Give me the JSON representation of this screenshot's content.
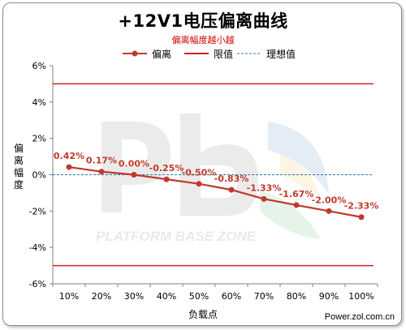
{
  "chart_data": {
    "type": "line",
    "title": "+12V1电压偏离曲线",
    "subtitle": "偏离幅度越小越",
    "xlabel": "负载点",
    "ylabel": "偏离幅度",
    "categories": [
      "10%",
      "20%",
      "30%",
      "40%",
      "50%",
      "60%",
      "70%",
      "80%",
      "90%",
      "100%"
    ],
    "series": [
      {
        "name": "偏离",
        "values": [
          0.42,
          0.17,
          0.0,
          -0.25,
          -0.5,
          -0.83,
          -1.33,
          -1.67,
          -2.0,
          -2.33
        ],
        "labels": [
          "0.42%",
          "0.17%",
          "0.00%",
          "-0.25%",
          "-0.50%",
          "-0.83%",
          "-1.33%",
          "-1.67%",
          "-2.00%",
          "-2.33%"
        ],
        "color": "#c0392b"
      },
      {
        "name": "限值",
        "values_upper": 5,
        "values_lower": -5,
        "color": "#d42020"
      },
      {
        "name": "理想值",
        "value": 0,
        "color": "#2e75b6"
      }
    ],
    "ylim": [
      -6,
      6
    ],
    "yticks": [
      -6,
      -4,
      -2,
      0,
      2,
      4,
      6
    ],
    "ytick_labels": [
      "-6%",
      "-4%",
      "-2%",
      "0%",
      "2%",
      "4%",
      "6%"
    ],
    "grid": false,
    "legend_position": "top"
  },
  "watermark": {
    "text": "PLATFORM BASE ZONE"
  },
  "source_text": "Power.zol.com.cn",
  "colors": {
    "label_text": "#c0392b",
    "axis": "#808080"
  }
}
